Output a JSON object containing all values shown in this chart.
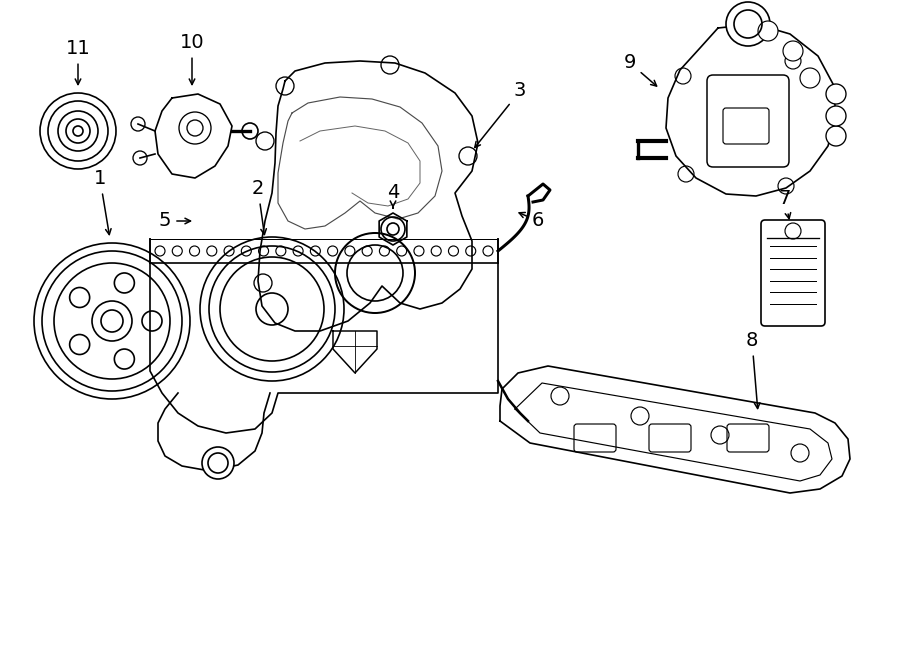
{
  "background_color": "#ffffff",
  "line_color": "#000000",
  "lw": 1.2
}
